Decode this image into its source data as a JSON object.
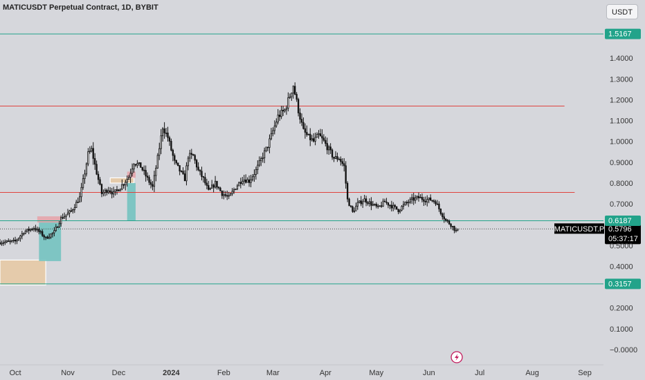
{
  "header": {
    "title": "MATICUSDT Perpetual Contract, 1D, BYBIT",
    "currency": "USDT"
  },
  "colors": {
    "background": "#d6d7dc",
    "candle": "#111111",
    "support_line": "#22a38a",
    "resistance_line": "#e0413d",
    "current_label_bg": "#000000",
    "teal_zone": "#6ec2be",
    "orange_zone": "#e8c9a2",
    "pink_zone": "#e6a2a8"
  },
  "chart_data": {
    "type": "candlestick",
    "symbol": "MATICUSDT",
    "timeframe": "1D",
    "exchange": "BYBIT",
    "y_ticks": [
      "1.4000",
      "1.3000",
      "1.2000",
      "1.1000",
      "1.0000",
      "0.9000",
      "0.8000",
      "0.7000",
      "0.5000",
      "0.4000",
      "0.2000",
      "0.1000",
      "−0.0000"
    ],
    "x_ticks": [
      {
        "label": "Oct",
        "date": "2023-10-01",
        "bold": false
      },
      {
        "label": "Nov",
        "date": "2023-11-01",
        "bold": false
      },
      {
        "label": "Dec",
        "date": "2023-12-01",
        "bold": false
      },
      {
        "label": "2024",
        "date": "2024-01-01",
        "bold": true
      },
      {
        "label": "Feb",
        "date": "2024-02-01",
        "bold": false
      },
      {
        "label": "Mar",
        "date": "2024-03-01",
        "bold": false
      },
      {
        "label": "Apr",
        "date": "2024-04-01",
        "bold": false
      },
      {
        "label": "May",
        "date": "2024-05-01",
        "bold": false
      },
      {
        "label": "Jun",
        "date": "2024-06-01",
        "bold": false
      },
      {
        "label": "Jul",
        "date": "2024-07-01",
        "bold": false
      },
      {
        "label": "Aug",
        "date": "2024-08-01",
        "bold": false
      },
      {
        "label": "Sep",
        "date": "2024-09-01",
        "bold": false
      }
    ],
    "x_range": [
      "2023-09-22",
      "2024-09-12"
    ],
    "y_range": [
      -0.07,
      1.58
    ],
    "horizontal_lines": [
      {
        "price": 1.5167,
        "label": "1.5167",
        "color": "#22a38a"
      },
      {
        "price": 0.6187,
        "label": "0.6187",
        "color": "#22a38a"
      },
      {
        "price": 0.3157,
        "label": "0.3157",
        "color": "#22a38a"
      },
      {
        "price": 1.17,
        "label": "",
        "color": "#e0413d",
        "end": "2024-08-20"
      },
      {
        "price": 0.755,
        "label": "",
        "color": "#e0413d",
        "end": "2024-08-26"
      }
    ],
    "current_price": {
      "symbol": "MATICUSDT.P",
      "price": 0.5796,
      "label": "0.5796",
      "countdown": "05:37:17"
    },
    "zones": [
      {
        "type": "orange",
        "start": "2023-09-22",
        "end": "2023-10-19",
        "low": 0.31,
        "high": 0.43
      },
      {
        "type": "teal",
        "start": "2023-10-15",
        "end": "2023-10-28",
        "low": 0.425,
        "high": 0.615
      },
      {
        "type": "pink",
        "start": "2023-10-14",
        "end": "2023-10-28",
        "low": 0.61,
        "high": 0.64
      },
      {
        "type": "orange",
        "start": "2023-11-26",
        "end": "2023-12-10",
        "low": 0.8,
        "high": 0.825
      },
      {
        "type": "teal",
        "start": "2023-12-06",
        "end": "2023-12-11",
        "low": 0.62,
        "high": 0.8
      },
      {
        "type": "pink",
        "start": "2023-12-06",
        "end": "2023-12-11",
        "low": 0.825,
        "high": 0.855
      }
    ],
    "price_path": [
      [
        "2023-09-22",
        0.515
      ],
      [
        "2023-10-01",
        0.52
      ],
      [
        "2023-10-06",
        0.565
      ],
      [
        "2023-10-12",
        0.585
      ],
      [
        "2023-10-16",
        0.56
      ],
      [
        "2023-10-19",
        0.535
      ],
      [
        "2023-10-24",
        0.565
      ],
      [
        "2023-10-28",
        0.63
      ],
      [
        "2023-11-03",
        0.665
      ],
      [
        "2023-11-08",
        0.73
      ],
      [
        "2023-11-11",
        0.85
      ],
      [
        "2023-11-13",
        0.94
      ],
      [
        "2023-11-15",
        0.96
      ],
      [
        "2023-11-18",
        0.85
      ],
      [
        "2023-11-21",
        0.75
      ],
      [
        "2023-11-25",
        0.77
      ],
      [
        "2023-11-28",
        0.75
      ],
      [
        "2023-12-02",
        0.78
      ],
      [
        "2023-12-07",
        0.83
      ],
      [
        "2023-12-10",
        0.9
      ],
      [
        "2023-12-14",
        0.88
      ],
      [
        "2023-12-18",
        0.82
      ],
      [
        "2023-12-21",
        0.78
      ],
      [
        "2023-12-24",
        0.92
      ],
      [
        "2023-12-27",
        1.07
      ],
      [
        "2023-12-30",
        1.02
      ],
      [
        "2024-01-03",
        0.9
      ],
      [
        "2024-01-06",
        0.86
      ],
      [
        "2024-01-09",
        0.82
      ],
      [
        "2024-01-11",
        0.93
      ],
      [
        "2024-01-14",
        0.93
      ],
      [
        "2024-01-17",
        0.86
      ],
      [
        "2024-01-20",
        0.82
      ],
      [
        "2024-01-23",
        0.76
      ],
      [
        "2024-01-27",
        0.8
      ],
      [
        "2024-01-31",
        0.75
      ],
      [
        "2024-02-04",
        0.73
      ],
      [
        "2024-02-08",
        0.78
      ],
      [
        "2024-02-12",
        0.82
      ],
      [
        "2024-02-16",
        0.81
      ],
      [
        "2024-02-20",
        0.86
      ],
      [
        "2024-02-24",
        0.93
      ],
      [
        "2024-02-27",
        0.98
      ],
      [
        "2024-03-01",
        1.05
      ],
      [
        "2024-03-04",
        1.12
      ],
      [
        "2024-03-08",
        1.15
      ],
      [
        "2024-03-11",
        1.22
      ],
      [
        "2024-03-13",
        1.27
      ],
      [
        "2024-03-16",
        1.15
      ],
      [
        "2024-03-19",
        1.05
      ],
      [
        "2024-03-22",
        1.02
      ],
      [
        "2024-03-25",
        1.0
      ],
      [
        "2024-03-28",
        1.03
      ],
      [
        "2024-03-31",
        1.0
      ],
      [
        "2024-04-03",
        0.96
      ],
      [
        "2024-04-06",
        0.92
      ],
      [
        "2024-04-09",
        0.92
      ],
      [
        "2024-04-12",
        0.88
      ],
      [
        "2024-04-14",
        0.72
      ],
      [
        "2024-04-17",
        0.66
      ],
      [
        "2024-04-20",
        0.7
      ],
      [
        "2024-04-24",
        0.72
      ],
      [
        "2024-04-28",
        0.7
      ],
      [
        "2024-05-02",
        0.68
      ],
      [
        "2024-05-06",
        0.71
      ],
      [
        "2024-05-10",
        0.69
      ],
      [
        "2024-05-14",
        0.67
      ],
      [
        "2024-05-18",
        0.7
      ],
      [
        "2024-05-22",
        0.72
      ],
      [
        "2024-05-26",
        0.73
      ],
      [
        "2024-05-30",
        0.72
      ],
      [
        "2024-06-02",
        0.72
      ],
      [
        "2024-06-05",
        0.71
      ],
      [
        "2024-06-08",
        0.66
      ],
      [
        "2024-06-11",
        0.62
      ],
      [
        "2024-06-14",
        0.6
      ],
      [
        "2024-06-17",
        0.57
      ],
      [
        "2024-06-18",
        0.5796
      ]
    ]
  }
}
